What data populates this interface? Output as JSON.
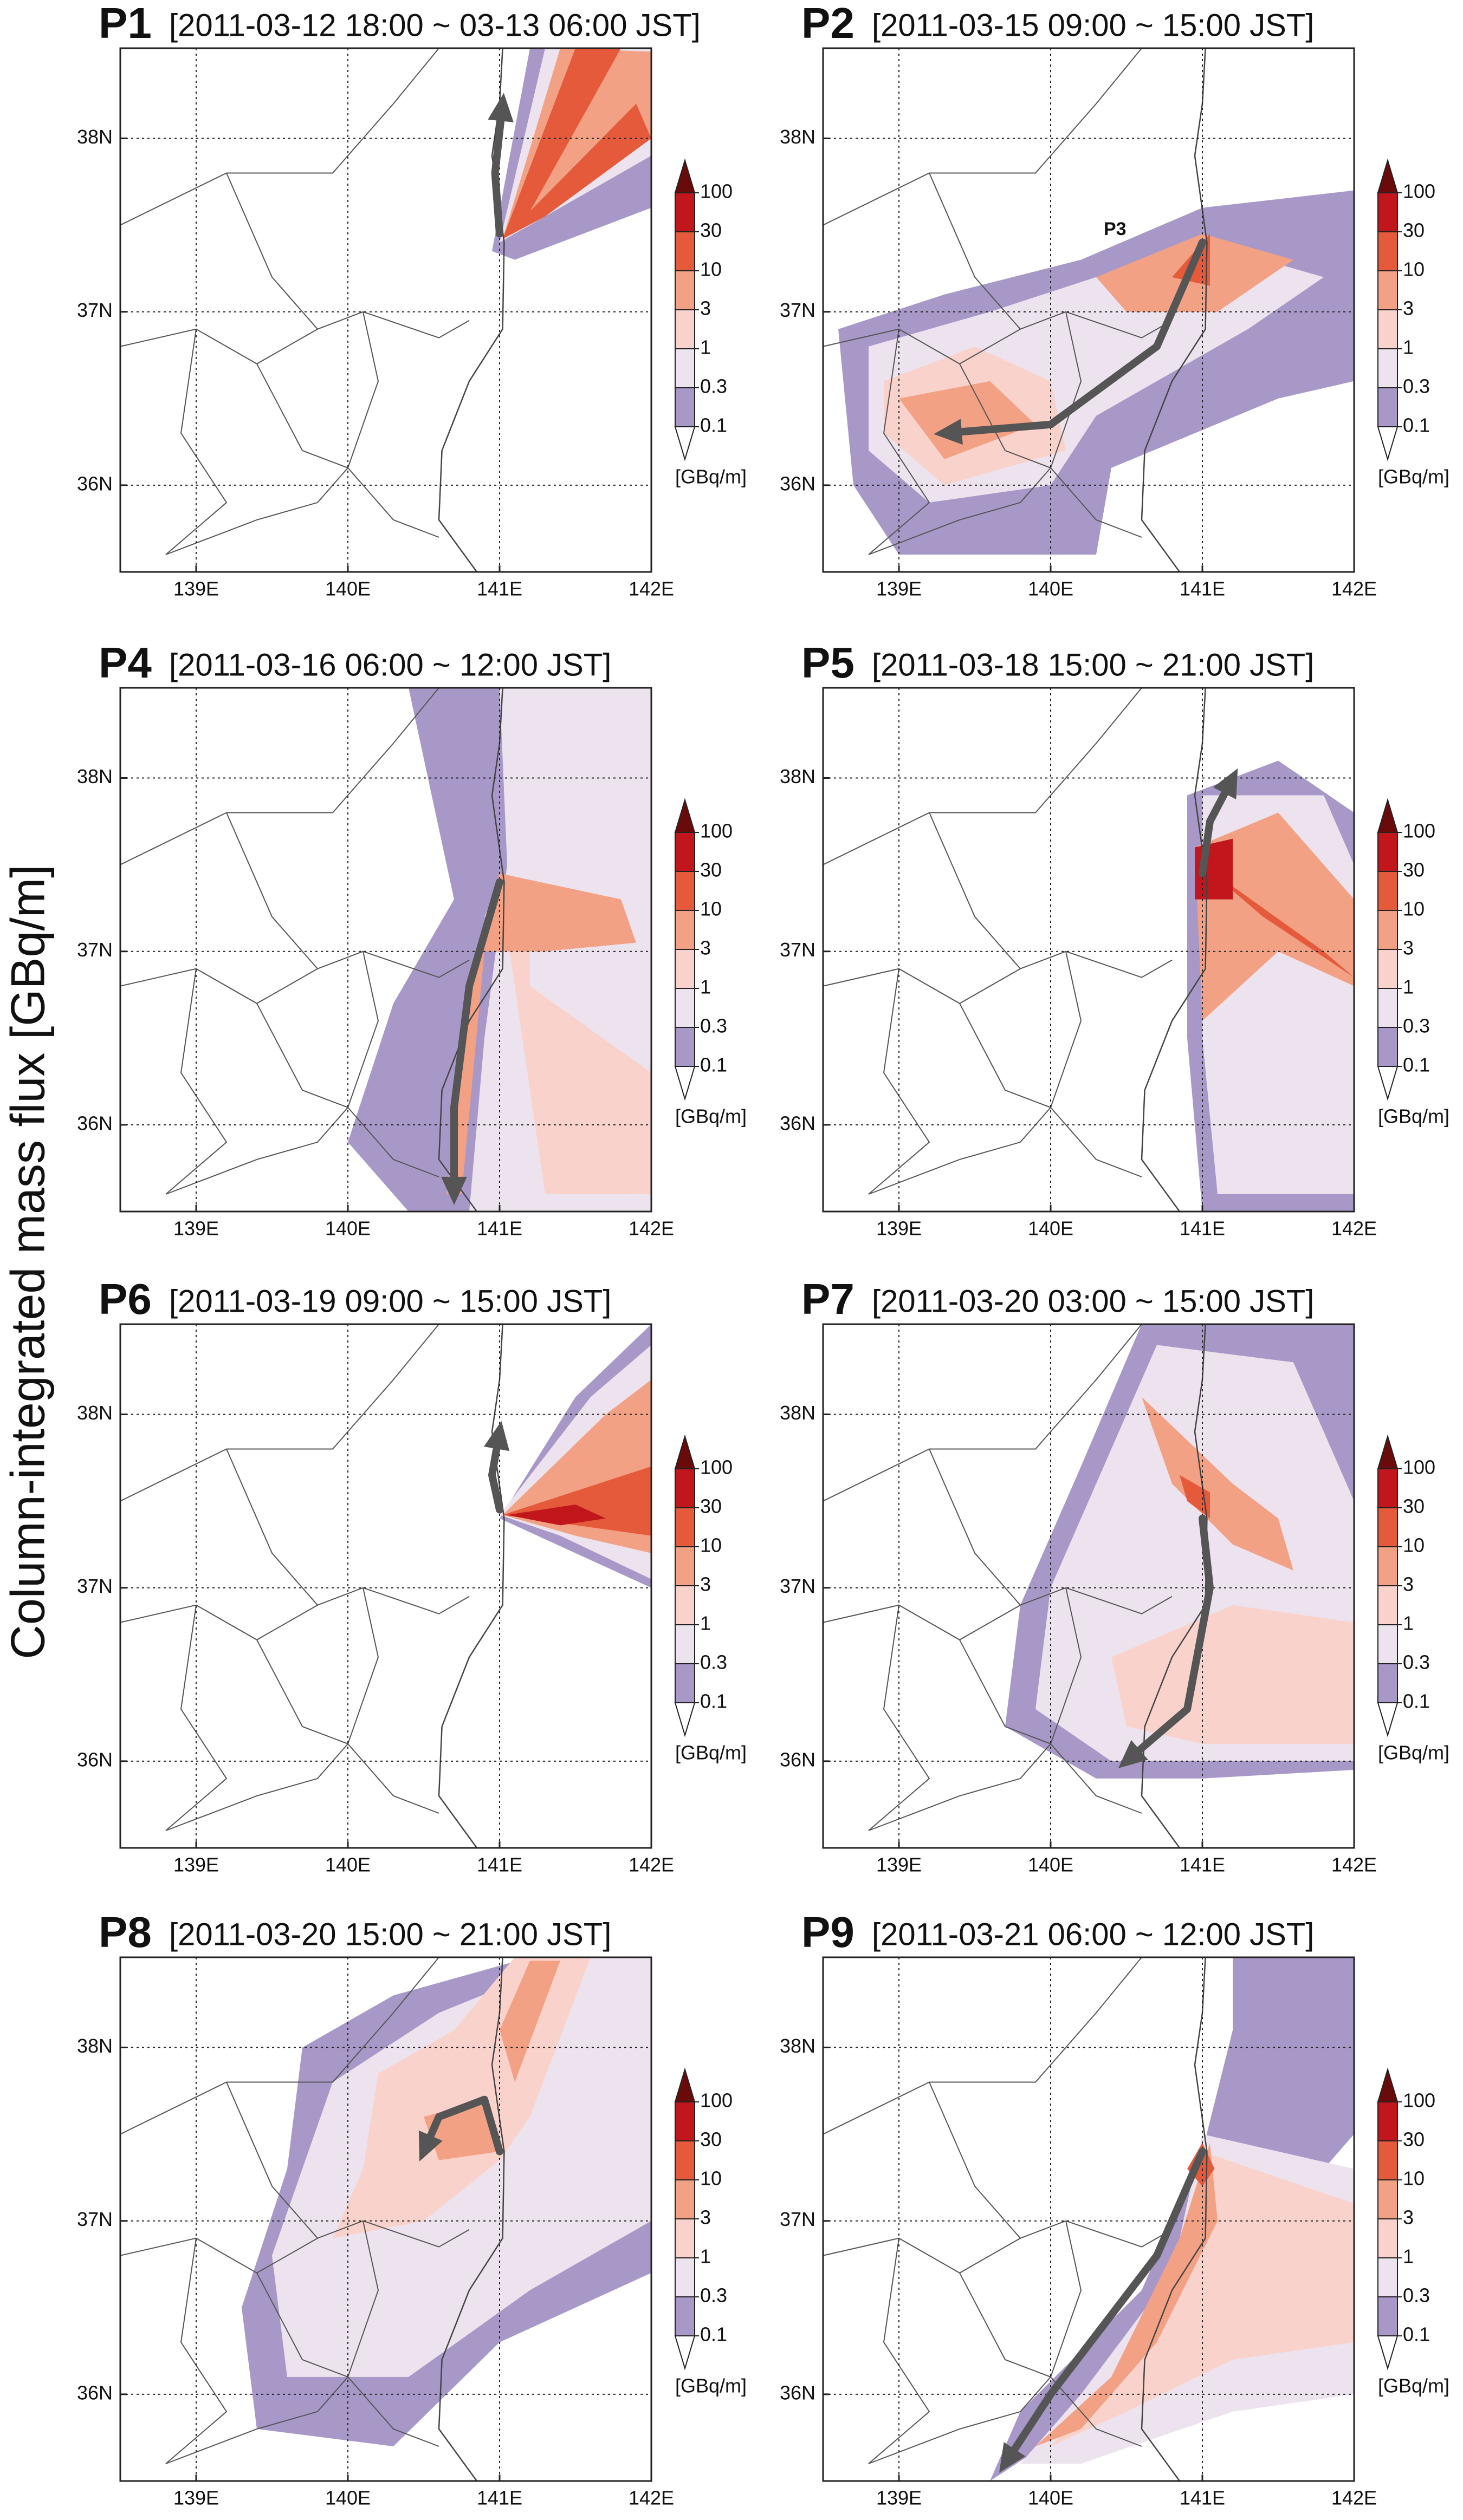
{
  "ylabel": "Column-integrated mass flux [GBq/m]",
  "axes": {
    "xlim": [
      138.5,
      142
    ],
    "ylim": [
      35.5,
      38.52
    ],
    "xticks": [
      {
        "value": 139,
        "label": "139E"
      },
      {
        "value": 140,
        "label": "140E"
      },
      {
        "value": 141,
        "label": "141E"
      },
      {
        "value": 142,
        "label": "142E"
      }
    ],
    "yticks": [
      {
        "value": 36,
        "label": "36N"
      },
      {
        "value": 37,
        "label": "37N"
      },
      {
        "value": 38,
        "label": "38N"
      }
    ],
    "grid": true
  },
  "colorbar": {
    "levels": [
      0.1,
      0.3,
      1,
      3,
      10,
      30,
      100
    ],
    "colors": [
      "#ffffff",
      "#a898c8",
      "#ece3ee",
      "#f9d3cb",
      "#f3a184",
      "#e45a3a",
      "#c0161c",
      "#6a0b0b"
    ],
    "unit": "[GBq/m]"
  },
  "panels": [
    {
      "label": "P1",
      "title": "[2011-03-12 18:00 ~ 03-13 06:00 JST]"
    },
    {
      "label": "P2",
      "title": "[2011-03-15 09:00 ~ 15:00 JST]",
      "annotation": "P3"
    },
    {
      "label": "P4",
      "title": "[2011-03-16 06:00 ~ 12:00 JST]"
    },
    {
      "label": "P5",
      "title": "[2011-03-18 15:00 ~ 21:00 JST]"
    },
    {
      "label": "P6",
      "title": "[2011-03-19 09:00 ~ 15:00 JST]"
    },
    {
      "label": "P7",
      "title": "[2011-03-20 03:00 ~ 15:00 JST]"
    },
    {
      "label": "P8",
      "title": "[2011-03-20 15:00 ~ 21:00 JST]"
    },
    {
      "label": "P9",
      "title": "[2011-03-21 06:00 ~ 12:00 JST]"
    }
  ]
}
